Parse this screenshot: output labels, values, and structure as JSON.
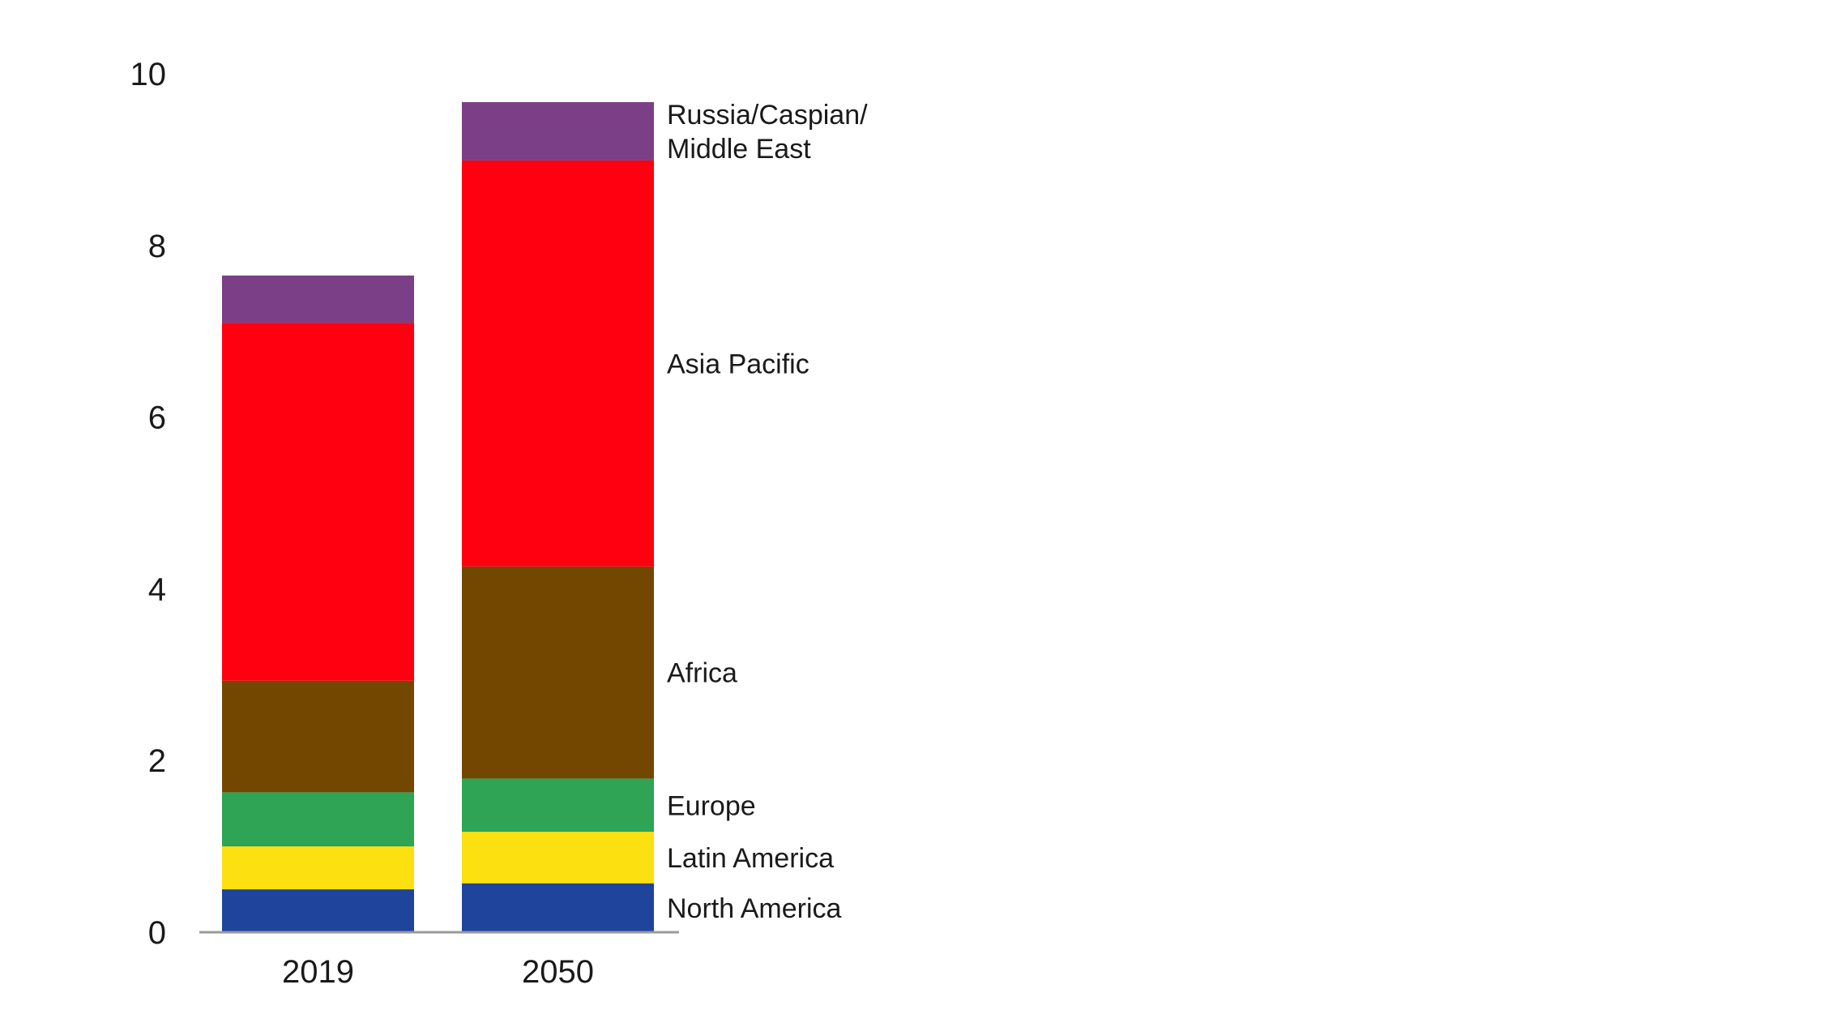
{
  "chart_data": {
    "type": "bar",
    "stacked": true,
    "categories": [
      "2019",
      "2050"
    ],
    "ylim": [
      0,
      10
    ],
    "yticks": [
      "0",
      "2",
      "4",
      "6",
      "8",
      "10"
    ],
    "grid": false,
    "legend": "labels beside the 2050 bar (right)",
    "series": [
      {
        "name": "North America",
        "color": "#1f449c",
        "values": [
          0.5,
          0.57
        ]
      },
      {
        "name": "Latin America",
        "color": "#fde010",
        "values": [
          0.5,
          0.6
        ]
      },
      {
        "name": "Europe",
        "color": "#2ea454",
        "values": [
          0.63,
          0.62
        ]
      },
      {
        "name": "Africa",
        "color": "#744700",
        "values": [
          1.3,
          2.47
        ]
      },
      {
        "name": "Asia Pacific",
        "color": "#ff0011",
        "values": [
          4.17,
          4.73
        ]
      },
      {
        "name": "Russia/Caspian/ Middle East",
        "color": "#7b3f87",
        "values": [
          0.55,
          0.68
        ]
      }
    ]
  }
}
